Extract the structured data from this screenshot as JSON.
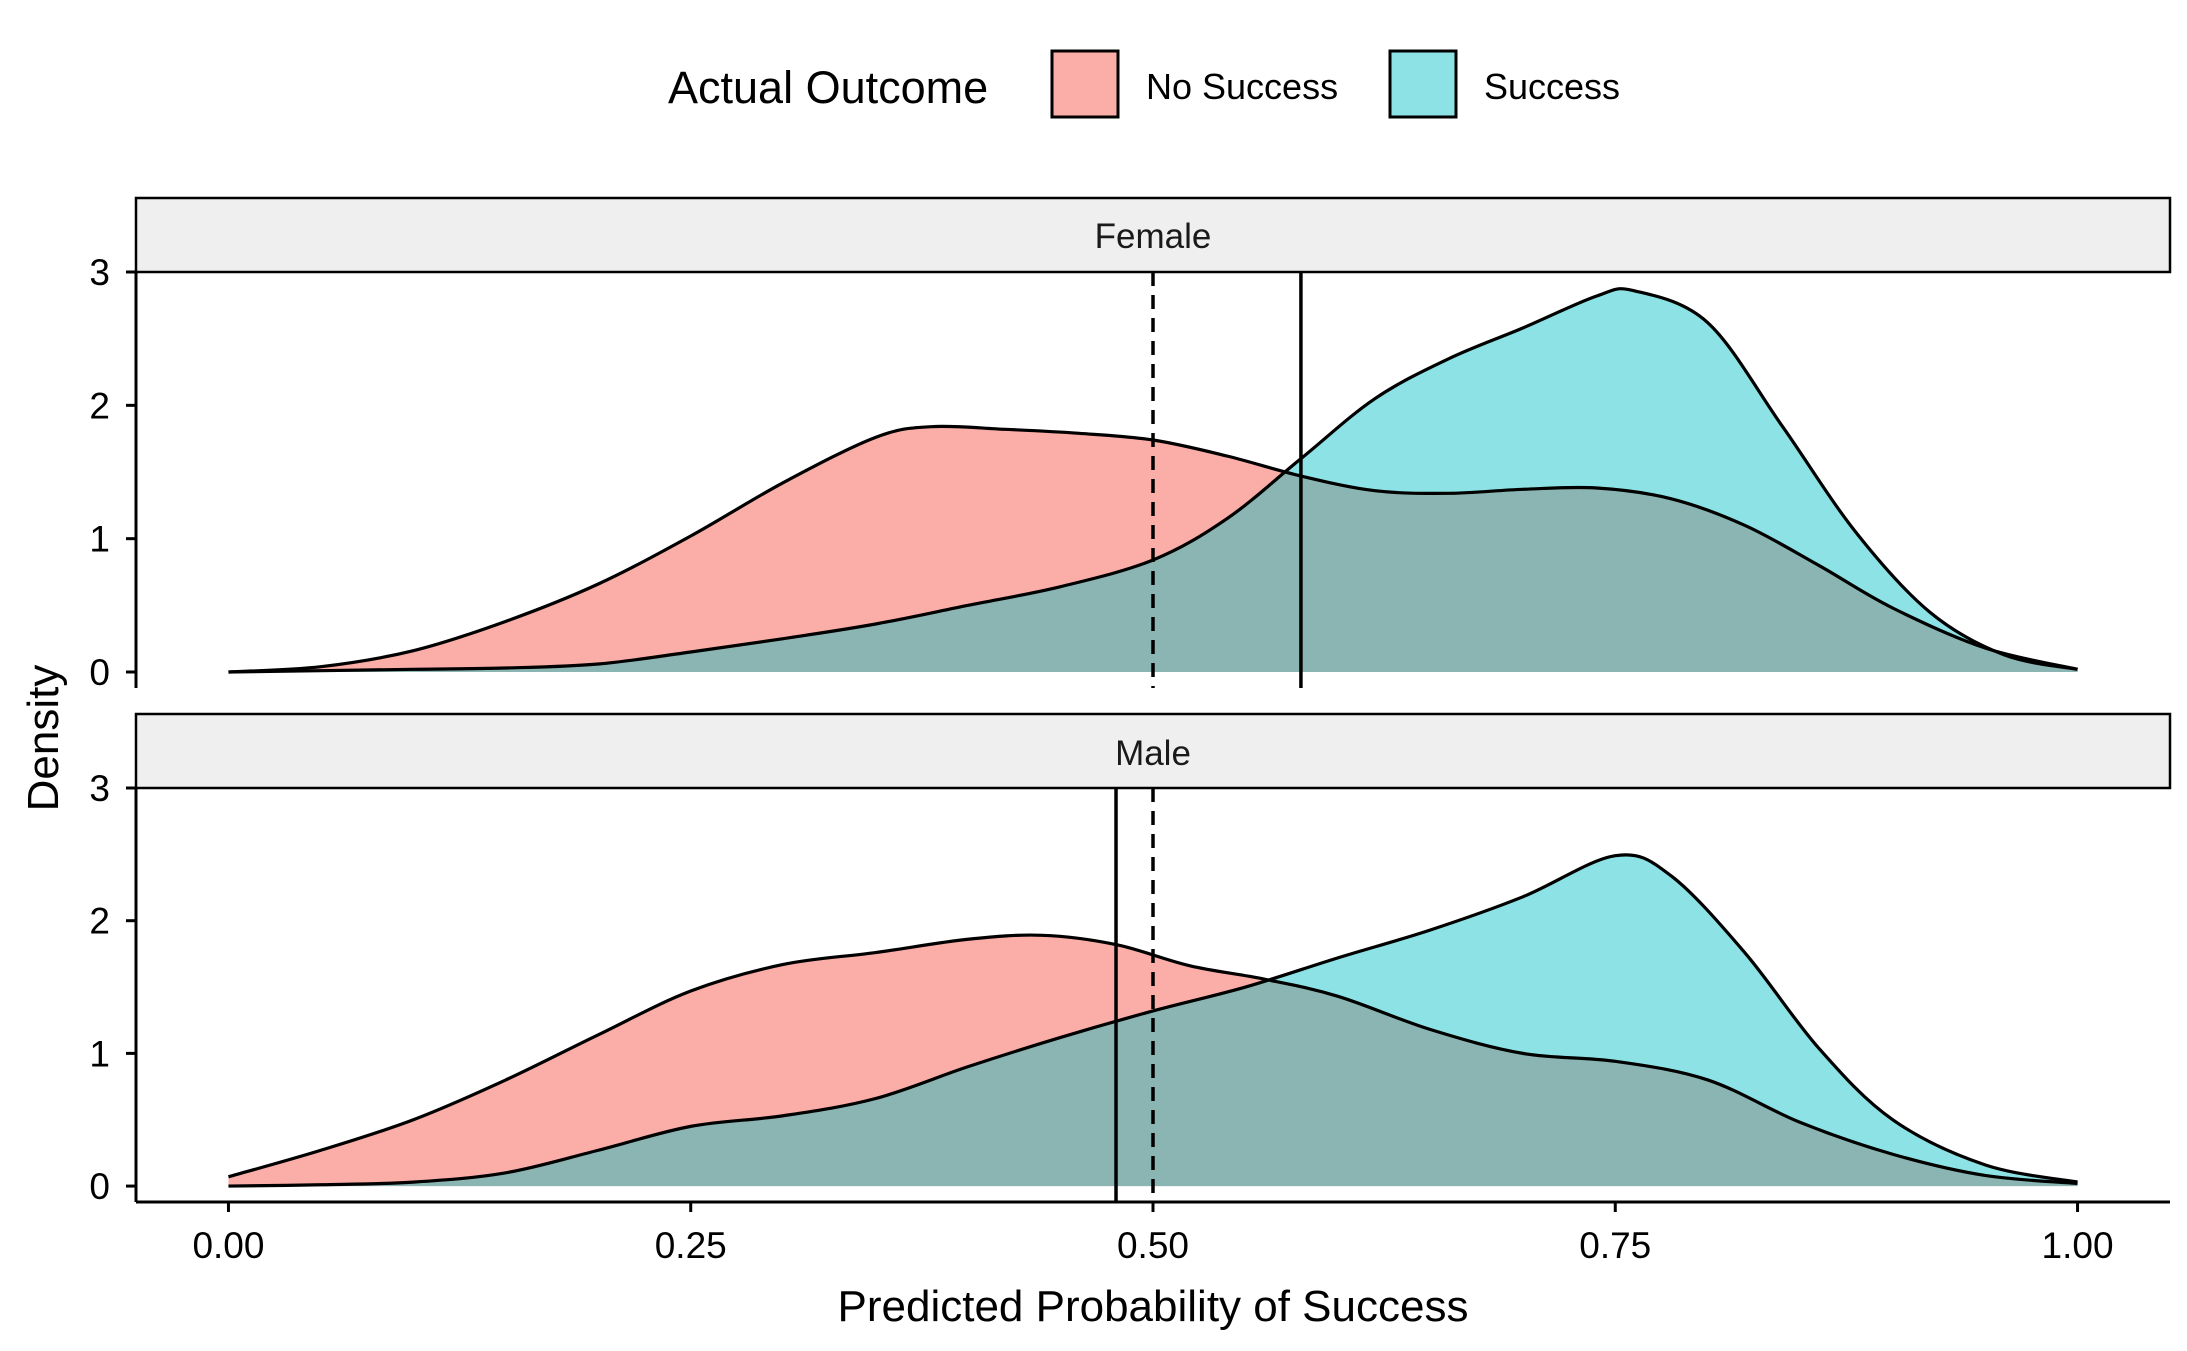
{
  "chart_data": {
    "type": "area",
    "subtype": "density",
    "xlabel": "Predicted Probability of Success",
    "ylabel": "Density",
    "xlim": [
      -0.05,
      1.05
    ],
    "ylim": [
      -0.12,
      3.0
    ],
    "x_ticks": [
      0.0,
      0.25,
      0.5,
      0.75,
      1.0
    ],
    "x_tick_labels": [
      "0.00",
      "0.25",
      "0.50",
      "0.75",
      "1.00"
    ],
    "y_ticks": [
      0,
      1,
      2,
      3
    ],
    "y_tick_labels": [
      "0",
      "1",
      "2",
      "3"
    ],
    "grid": false,
    "legend": {
      "title": "Actual Outcome",
      "position": "top",
      "entries": [
        {
          "label": "No Success",
          "color": "#F8766D"
        },
        {
          "label": "Success",
          "color": "#00BFC4"
        }
      ]
    },
    "reference_line_dashed": 0.5,
    "panels": [
      {
        "label": "Female",
        "threshold_solid": 0.58,
        "series": [
          {
            "name": "No Success",
            "color": "#F8766D",
            "x": [
              0.0,
              0.05,
              0.1,
              0.15,
              0.2,
              0.25,
              0.3,
              0.35,
              0.38,
              0.42,
              0.46,
              0.5,
              0.54,
              0.58,
              0.62,
              0.66,
              0.7,
              0.74,
              0.78,
              0.82,
              0.86,
              0.9,
              0.95,
              1.0
            ],
            "y": [
              0.0,
              0.04,
              0.16,
              0.38,
              0.66,
              1.02,
              1.42,
              1.76,
              1.84,
              1.82,
              1.79,
              1.74,
              1.62,
              1.47,
              1.36,
              1.34,
              1.37,
              1.38,
              1.3,
              1.1,
              0.8,
              0.48,
              0.18,
              0.02
            ]
          },
          {
            "name": "Success",
            "color": "#00BFC4",
            "x": [
              0.0,
              0.05,
              0.1,
              0.15,
              0.2,
              0.25,
              0.3,
              0.35,
              0.4,
              0.45,
              0.5,
              0.54,
              0.58,
              0.62,
              0.66,
              0.7,
              0.74,
              0.76,
              0.8,
              0.84,
              0.88,
              0.92,
              0.96,
              1.0
            ],
            "y": [
              0.0,
              0.01,
              0.02,
              0.03,
              0.06,
              0.15,
              0.25,
              0.36,
              0.5,
              0.64,
              0.84,
              1.15,
              1.6,
              2.05,
              2.35,
              2.58,
              2.82,
              2.86,
              2.62,
              1.85,
              1.05,
              0.45,
              0.13,
              0.02
            ]
          }
        ]
      },
      {
        "label": "Male",
        "threshold_solid": 0.48,
        "series": [
          {
            "name": "No Success",
            "color": "#F8766D",
            "x": [
              0.0,
              0.05,
              0.1,
              0.15,
              0.2,
              0.25,
              0.3,
              0.35,
              0.4,
              0.44,
              0.48,
              0.52,
              0.56,
              0.6,
              0.65,
              0.7,
              0.75,
              0.8,
              0.85,
              0.9,
              0.95,
              1.0
            ],
            "y": [
              0.07,
              0.27,
              0.5,
              0.8,
              1.14,
              1.47,
              1.67,
              1.76,
              1.86,
              1.89,
              1.82,
              1.66,
              1.56,
              1.43,
              1.18,
              1.0,
              0.94,
              0.8,
              0.48,
              0.24,
              0.08,
              0.02
            ]
          },
          {
            "name": "Success",
            "color": "#00BFC4",
            "x": [
              0.0,
              0.05,
              0.1,
              0.15,
              0.2,
              0.25,
              0.3,
              0.35,
              0.4,
              0.45,
              0.5,
              0.55,
              0.6,
              0.65,
              0.7,
              0.75,
              0.78,
              0.82,
              0.86,
              0.9,
              0.95,
              1.0
            ],
            "y": [
              0.0,
              0.01,
              0.03,
              0.1,
              0.27,
              0.45,
              0.53,
              0.66,
              0.9,
              1.12,
              1.32,
              1.5,
              1.72,
              1.93,
              2.18,
              2.49,
              2.34,
              1.76,
              1.04,
              0.5,
              0.16,
              0.03
            ]
          }
        ]
      }
    ]
  }
}
